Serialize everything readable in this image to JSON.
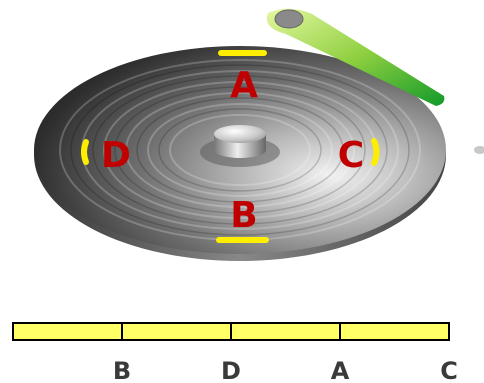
{
  "disk": {
    "sectors": [
      {
        "id": "A",
        "label": "A"
      },
      {
        "id": "B",
        "label": "B"
      },
      {
        "id": "C",
        "label": "C"
      },
      {
        "id": "D",
        "label": "D"
      }
    ]
  },
  "track": {
    "segments": 4,
    "labels": [
      "B",
      "D",
      "A",
      "C"
    ]
  },
  "colors": {
    "sector_label": "#c00000",
    "sector_marker": "#ffee00",
    "track_fill": "#ffff66",
    "track_stroke": "#000000",
    "track_label": "#3a3a3a",
    "arm_light": "#d8f088",
    "arm_dark": "#1a9a2a"
  }
}
